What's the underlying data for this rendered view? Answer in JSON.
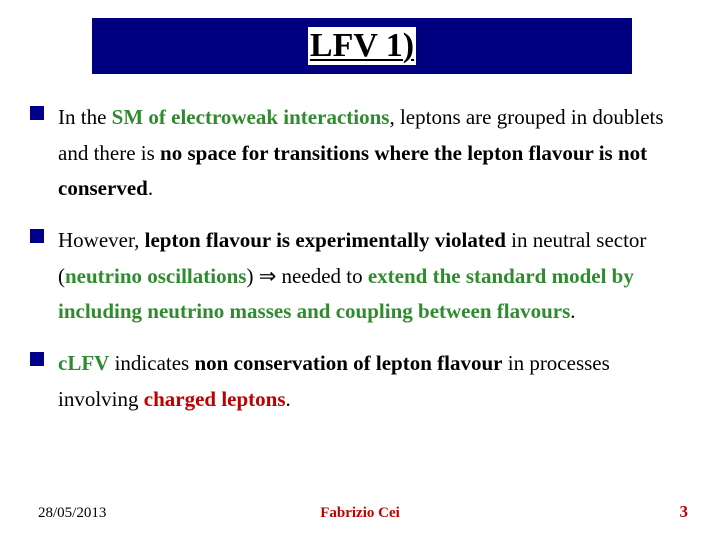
{
  "title": "LFV 1)",
  "bullets": [
    {
      "prefix": "In the ",
      "green1": "SM of electroweak interactions",
      "mid1": ", leptons are grouped in doublets and there is ",
      "bold1": "no space for transitions where the lepton flavour is not conserved",
      "suffix": "."
    },
    {
      "prefix": "However, ",
      "bold1": "lepton flavour is experimentally violated",
      "mid1": " in neutral sector (",
      "green1": "neutrino oscillations",
      "mid2": ") ",
      "arrow": "⇒",
      "mid3": " needed to ",
      "green2": "extend the standard model by including neutrino masses and coupling between flavours",
      "suffix": "."
    },
    {
      "green1": "cLFV",
      "mid1": " indicates ",
      "bold1": "non conservation of lepton flavour",
      "mid2": " in processes involving ",
      "red1": "charged leptons",
      "suffix": "."
    }
  ],
  "footer": {
    "date": "28/05/2013",
    "author": "Fabrizio Cei",
    "page": "3"
  },
  "colors": {
    "titleBarBg": "#000080",
    "green": "#2e8b2e",
    "red": "#c00000",
    "bulletSquare": "#00008b"
  }
}
